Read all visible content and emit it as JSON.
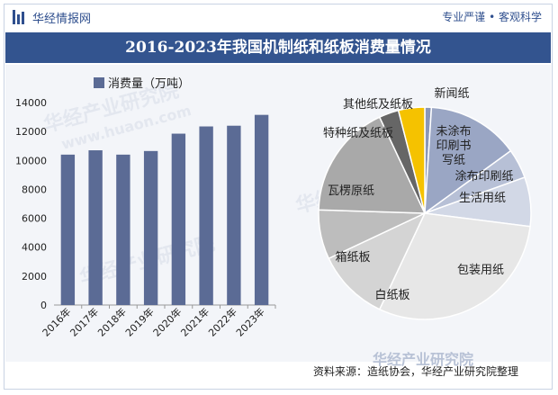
{
  "header": {
    "brand": "华经情报网",
    "slogan": "专业严谨 • 客观科学"
  },
  "title": "2016-2023年我国机制纸和纸板消费量情况",
  "watermarks": [
    "华经产业研究院",
    "www.huaon.com"
  ],
  "footer": {
    "logo_text": "华经产业研究院",
    "source": "资料来源：造纸协会，华经产业研究院整理"
  },
  "colors": {
    "bar": "#5b6b95",
    "title_band": "#33548f",
    "pie_outline": "#ffffff"
  },
  "chart_data": [
    {
      "type": "bar",
      "legend": "消费量（万吨）",
      "categories": [
        "2016年",
        "2017年",
        "2018年",
        "2019年",
        "2020年",
        "2021年",
        "2022年",
        "2023年"
      ],
      "values": [
        10400,
        10700,
        10400,
        10650,
        11850,
        12350,
        12400,
        13150
      ],
      "ylim": [
        0,
        14000
      ],
      "yticks": [
        0,
        2000,
        4000,
        6000,
        8000,
        10000,
        12000,
        14000
      ],
      "ytick_labels": [
        "0",
        "2000",
        "4000",
        "6000",
        "8000",
        "10000",
        "12000",
        "14000"
      ],
      "legend_position": "top-left"
    },
    {
      "type": "pie",
      "slices": [
        {
          "label": "新闻纸",
          "value": 1.0,
          "color": "#8a97b8"
        },
        {
          "label": "未涂布印刷书写纸",
          "value": 14.0,
          "color": "#9aa6c4"
        },
        {
          "label": "涂布印刷纸",
          "value": 4.5,
          "color": "#b7c0d6"
        },
        {
          "label": "生活用纸",
          "value": 7.5,
          "color": "#d2d8e6"
        },
        {
          "label": "包装用纸",
          "value": 30.0,
          "color": "#e7e7e7"
        },
        {
          "label": "白纸板",
          "value": 11.0,
          "color": "#d4d4d4"
        },
        {
          "label": "箱纸板",
          "value": 7.5,
          "color": "#bdbdbd"
        },
        {
          "label": "瓦楞原纸",
          "value": 17.5,
          "color": "#a9a9a9"
        },
        {
          "label": "特种纸及纸板",
          "value": 3.0,
          "color": "#666666"
        },
        {
          "label": "其他纸及纸板",
          "value": 4.0,
          "color": "#f5c200"
        }
      ]
    }
  ]
}
